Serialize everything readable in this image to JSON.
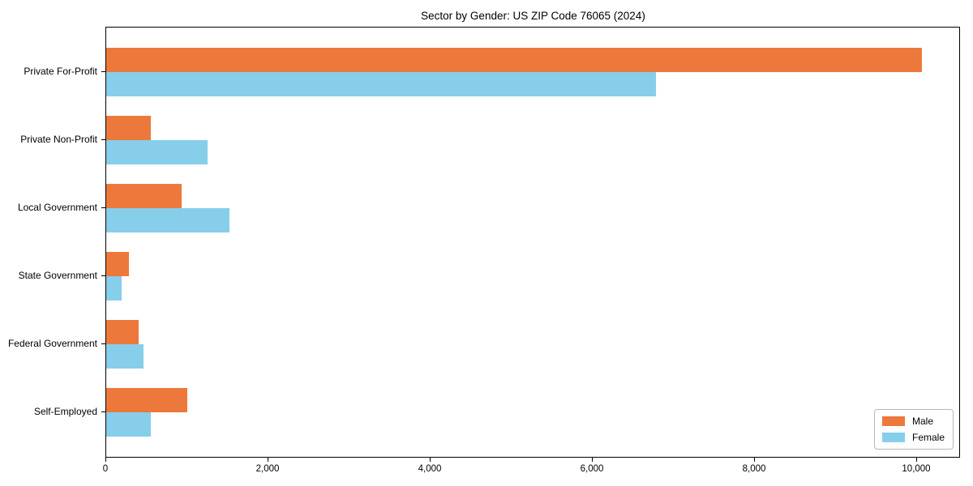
{
  "chart_data": {
    "type": "bar",
    "orientation": "horizontal",
    "title": "Sector by Gender: US ZIP Code 76065 (2024)",
    "categories": [
      "Private For-Profit",
      "Private Non-Profit",
      "Local Government",
      "State Government",
      "Federal Government",
      "Self-Employed"
    ],
    "series": [
      {
        "name": "Male",
        "color": "#EC793B",
        "values": [
          10060,
          550,
          930,
          280,
          400,
          1000
        ]
      },
      {
        "name": "Female",
        "color": "#87CEEB",
        "values": [
          6780,
          1250,
          1520,
          190,
          460,
          550
        ]
      }
    ],
    "x_ticks": [
      0,
      2000,
      4000,
      6000,
      8000,
      10000
    ],
    "x_tick_labels": [
      "0",
      "2,000",
      "4,000",
      "6,000",
      "8,000",
      "10,000"
    ],
    "xlim": [
      0,
      10540
    ],
    "grid": false,
    "legend_position": "lower right",
    "frame": true
  }
}
